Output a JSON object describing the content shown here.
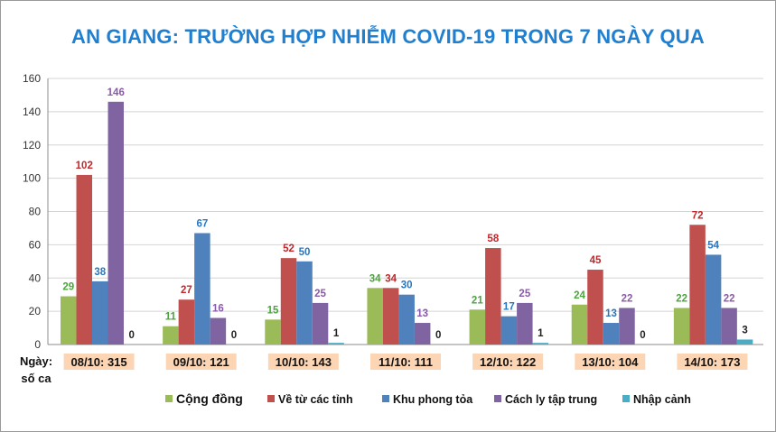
{
  "chart_data": {
    "type": "bar",
    "title": "AN GIANG: TRƯỜNG HỢP NHIỄM COVID-19 TRONG 7 NGÀY QUA",
    "row_header": "Ngày:\nsố ca",
    "categories": [
      "08/10: 315",
      "09/10: 121",
      "10/10: 143",
      "11/10: 111",
      "12/10: 122",
      "13/10: 104",
      "14/10: 173"
    ],
    "ylim": [
      0,
      160
    ],
    "yticks": [
      0,
      20,
      40,
      60,
      80,
      100,
      120,
      140,
      160
    ],
    "grid": true,
    "legend_position": "bottom",
    "series": [
      {
        "name": "Cộng đồng",
        "color": "#9bbb59",
        "label_color": "#4aa63c",
        "values": [
          29,
          11,
          15,
          34,
          21,
          24,
          22
        ]
      },
      {
        "name": "Về từ các tỉnh",
        "color": "#c0504d",
        "label_color": "#c0262a",
        "values": [
          102,
          27,
          52,
          34,
          58,
          45,
          72
        ]
      },
      {
        "name": "Khu phong tỏa",
        "color": "#4f81bd",
        "label_color": "#2a76c0",
        "values": [
          38,
          67,
          50,
          30,
          17,
          13,
          54
        ]
      },
      {
        "name": "Cách ly tập trung",
        "color": "#8064a2",
        "label_color": "#8a5aa8",
        "values": [
          146,
          16,
          25,
          13,
          25,
          22,
          22
        ]
      },
      {
        "name": "Nhập cảnh",
        "color": "#4bacc6",
        "label_color": "#222222",
        "values": [
          0,
          0,
          1,
          0,
          1,
          0,
          3
        ]
      }
    ],
    "category_label_bg": "#fcd5b4"
  }
}
